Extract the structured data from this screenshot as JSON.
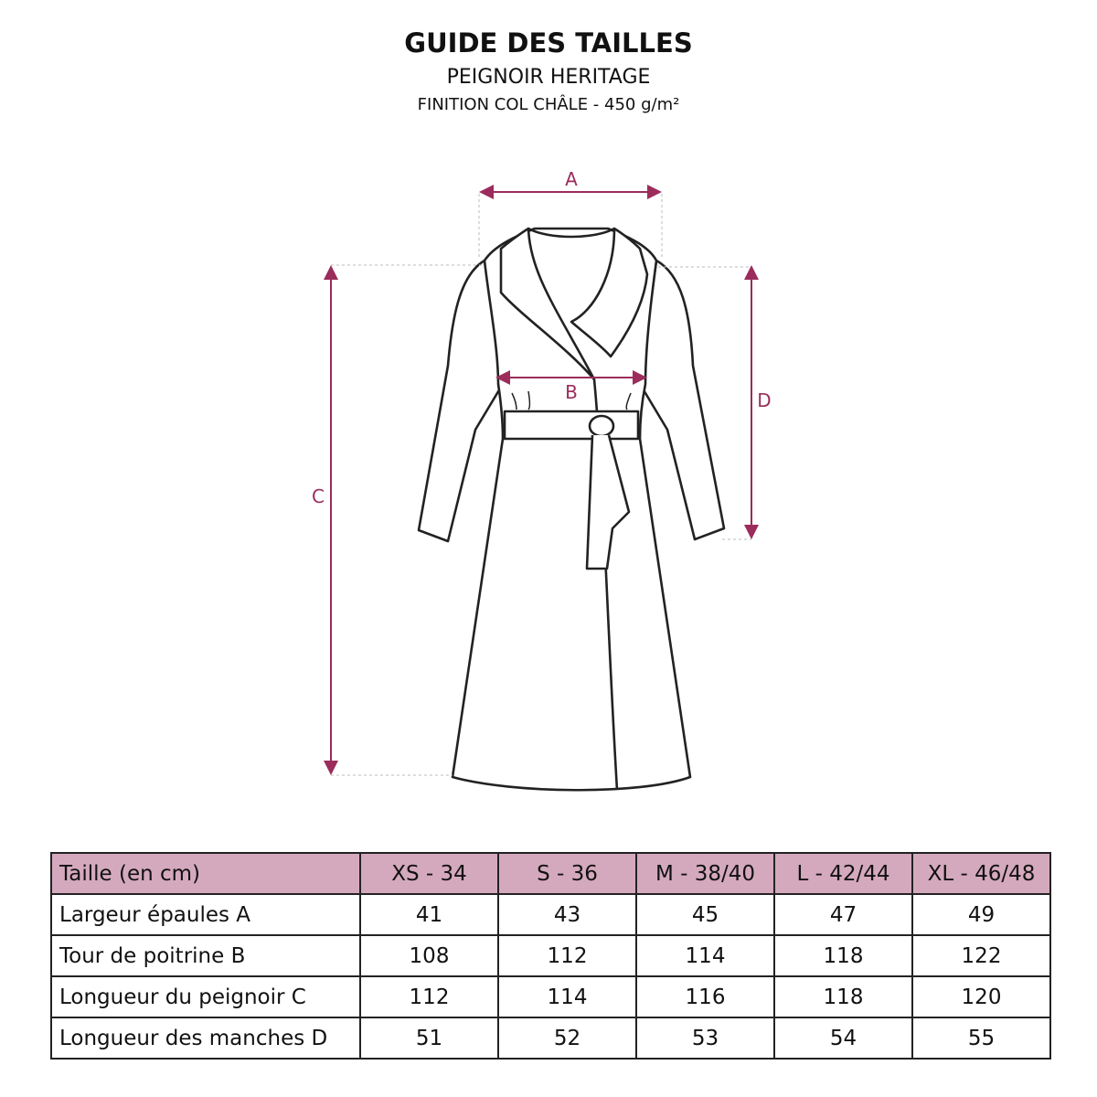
{
  "header": {
    "title": "GUIDE DES TAILLES",
    "subtitle": "PEIGNOIR HERITAGE",
    "detail": "FINITION COL CHÂLE - 450 g/m²"
  },
  "diagram": {
    "accent_color": "#9b2c5c",
    "labels": {
      "a": "A",
      "b": "B",
      "c": "C",
      "d": "D"
    }
  },
  "table": {
    "header_color": "#d5a9bd",
    "columns": [
      "Taille (en cm)",
      "XS - 34",
      "S - 36",
      "M - 38/40",
      "L - 42/44",
      "XL - 46/48"
    ],
    "rows": [
      {
        "label": "Largeur épaules A",
        "values": [
          "41",
          "43",
          "45",
          "47",
          "49"
        ]
      },
      {
        "label": "Tour de poitrine B",
        "values": [
          "108",
          "112",
          "114",
          "118",
          "122"
        ]
      },
      {
        "label": "Longueur du peignoir C",
        "values": [
          "112",
          "114",
          "116",
          "118",
          "120"
        ]
      },
      {
        "label": "Longueur des manches D",
        "values": [
          "51",
          "52",
          "53",
          "54",
          "55"
        ]
      }
    ]
  }
}
